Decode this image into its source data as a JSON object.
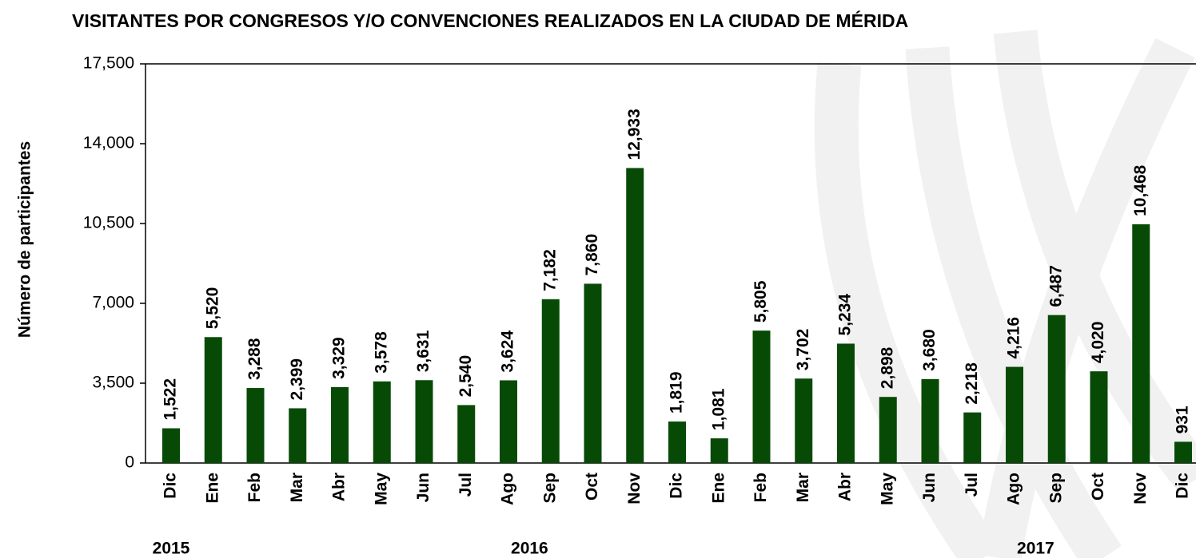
{
  "chart_data": {
    "type": "bar",
    "title": "VISITANTES POR CONGRESOS Y/O CONVENCIONES REALIZADOS EN LA CIUDAD DE MÉRIDA",
    "ylabel": "Número de participantes",
    "categories": [
      "Dic",
      "Ene",
      "Feb",
      "Mar",
      "Abr",
      "May",
      "Jun",
      "Jul",
      "Ago",
      "Sep",
      "Oct",
      "Nov",
      "Dic",
      "Ene",
      "Feb",
      "Mar",
      "Abr",
      "May",
      "Jun",
      "Jul",
      "Ago",
      "Sep",
      "Oct",
      "Nov",
      "Dic"
    ],
    "years": [
      "2015",
      "2016",
      "2017"
    ],
    "values": [
      1522,
      5520,
      3288,
      2399,
      3329,
      3578,
      3631,
      2540,
      3624,
      7182,
      7860,
      12933,
      1819,
      1081,
      5805,
      3702,
      5234,
      2898,
      3680,
      2218,
      4216,
      6487,
      4020,
      10468,
      931
    ],
    "value_labels": [
      "1,522",
      "5,520",
      "3,288",
      "2,399",
      "3,329",
      "3,578",
      "3,631",
      "2,540",
      "3,624",
      "7,182",
      "7,860",
      "12,933",
      "1,819",
      "1,081",
      "5,805",
      "3,702",
      "5,234",
      "2,898",
      "3,680",
      "2,218",
      "4,216",
      "6,487",
      "4,020",
      "10,468",
      "931"
    ],
    "color": "#064a06",
    "ylim": [
      0,
      17500
    ],
    "yticks": [
      0,
      {
        "value": 3500,
        "label": "3,500"
      },
      {
        "value": 7000,
        "label": "7,000"
      },
      {
        "value": 10500,
        "label": "10,500"
      },
      {
        "value": 14000,
        "label": "14,000"
      },
      {
        "value": 17500,
        "label": "17,500"
      }
    ],
    "grid": false
  }
}
